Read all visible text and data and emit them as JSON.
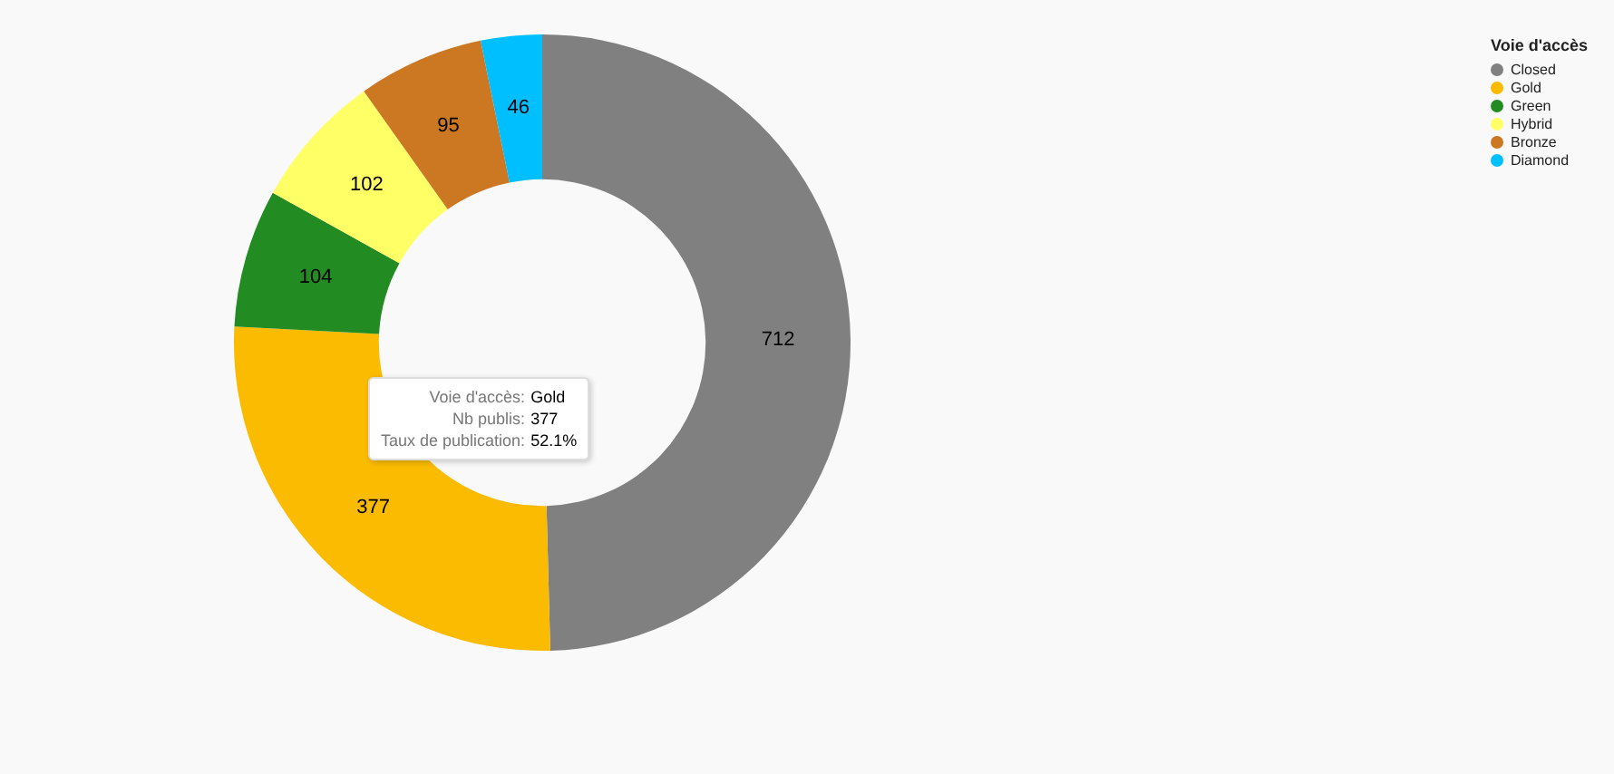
{
  "chart_data": {
    "type": "donut",
    "legend_title": "Voie d'accès",
    "legend": "top right",
    "data_labels": true,
    "categories": [
      "Closed",
      "Gold",
      "Green",
      "Hybrid",
      "Bronze",
      "Diamond"
    ],
    "values": [
      712,
      377,
      104,
      102,
      95,
      46
    ],
    "colors": [
      "#808080",
      "#fabb00",
      "#228b22",
      "#ffff66",
      "#cc7722",
      "#00bfff"
    ],
    "annotations": [
      "Voie d'accès: Gold",
      "Nb publis: 377",
      "Taux de publication: 52.1%"
    ]
  }
}
